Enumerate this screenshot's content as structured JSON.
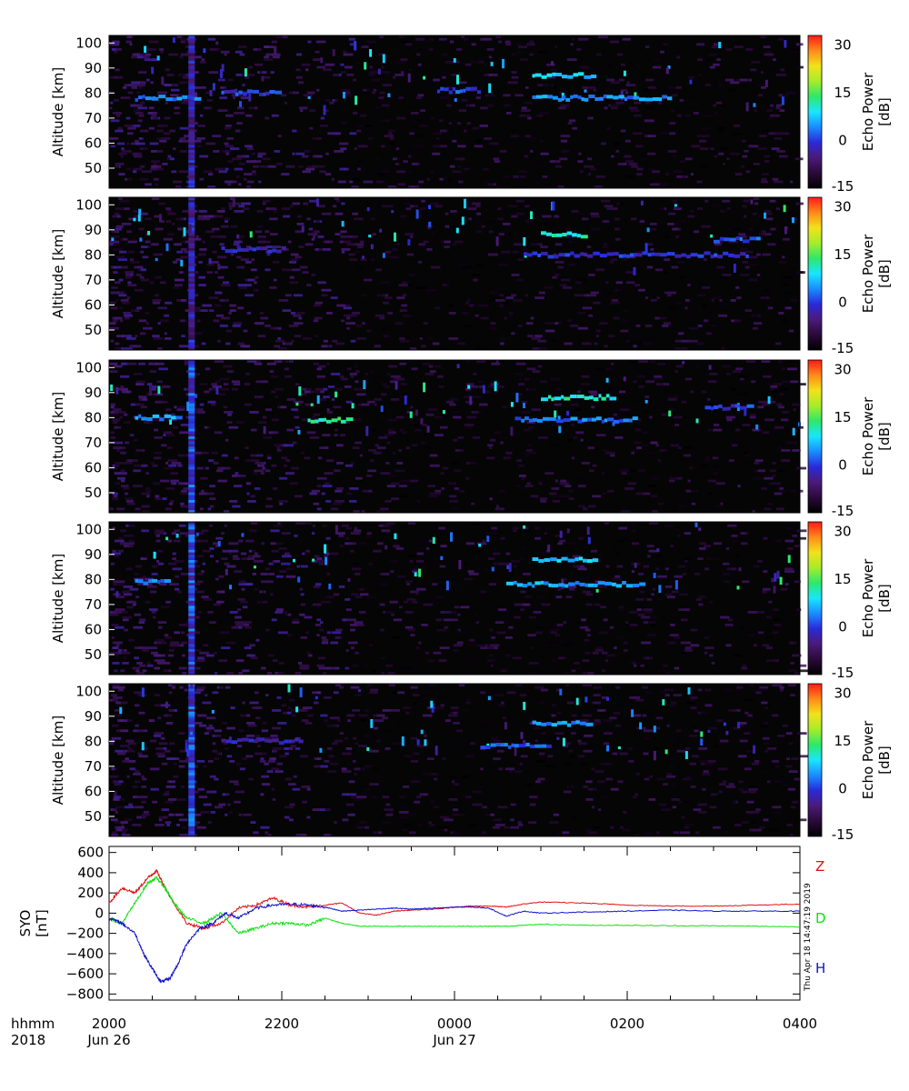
{
  "colors": {
    "background": "#ffffff",
    "plot_bg": "#050505",
    "colormap": [
      "#000000",
      "#2a0a3a",
      "#4b1a7a",
      "#2a2ad8",
      "#1a8cff",
      "#19e6ff",
      "#2ee86a",
      "#a6ec2a",
      "#f2e21a",
      "#ff8a1a",
      "#ff1a1a"
    ],
    "Z": "#e01010",
    "D": "#10e010",
    "H": "#1010d0"
  },
  "chart_data": [
    {
      "type": "heatmap",
      "panel": 1,
      "ylabel": "Altitude [km]",
      "yticks": [
        50,
        60,
        70,
        80,
        90,
        100
      ],
      "ylim": [
        42,
        103
      ],
      "xlim": [
        0,
        8
      ],
      "colorbar": {
        "label": "Echo Power",
        "unit": "[dB]",
        "ticks": [
          -15,
          0,
          15,
          30
        ],
        "range": [
          -15,
          33
        ]
      },
      "echo_layers": [
        {
          "x": [
            0.3,
            1.0
          ],
          "alt": 78,
          "value": 3
        },
        {
          "x": [
            1.3,
            2.0
          ],
          "alt": 80,
          "value": 0
        },
        {
          "x": [
            4.9,
            5.6
          ],
          "alt": 87,
          "value": 8
        },
        {
          "x": [
            4.9,
            6.5
          ],
          "alt": 78,
          "value": 4
        },
        {
          "x": [
            3.8,
            4.3
          ],
          "alt": 81,
          "value": 1
        }
      ]
    },
    {
      "type": "heatmap",
      "panel": 2,
      "ylabel": "Altitude [km]",
      "yticks": [
        50,
        60,
        70,
        80,
        90,
        100
      ],
      "ylim": [
        42,
        103
      ],
      "xlim": [
        0,
        8
      ],
      "colorbar": {
        "label": "Echo Power",
        "unit": "[dB]",
        "ticks": [
          -15,
          0,
          15,
          30
        ],
        "range": [
          -15,
          33
        ]
      },
      "echo_layers": [
        {
          "x": [
            1.3,
            2.0
          ],
          "alt": 82,
          "value": -2
        },
        {
          "x": [
            5.0,
            5.5
          ],
          "alt": 88,
          "value": 10
        },
        {
          "x": [
            4.8,
            7.4
          ],
          "alt": 80,
          "value": -1
        },
        {
          "x": [
            7.0,
            7.5
          ],
          "alt": 86,
          "value": 2
        }
      ]
    },
    {
      "type": "heatmap",
      "panel": 3,
      "ylabel": "Altitude [km]",
      "yticks": [
        50,
        60,
        70,
        80,
        90,
        100
      ],
      "ylim": [
        42,
        103
      ],
      "xlim": [
        0,
        8
      ],
      "colorbar": {
        "label": "Echo Power",
        "unit": "[dB]",
        "ticks": [
          -15,
          0,
          15,
          30
        ],
        "range": [
          -15,
          33
        ]
      },
      "echo_layers": [
        {
          "x": [
            0.3,
            0.8
          ],
          "alt": 80,
          "value": 5
        },
        {
          "x": [
            2.3,
            2.8
          ],
          "alt": 79,
          "value": 12
        },
        {
          "x": [
            5.0,
            5.8
          ],
          "alt": 88,
          "value": 11
        },
        {
          "x": [
            4.7,
            6.1
          ],
          "alt": 79,
          "value": 3
        },
        {
          "x": [
            6.9,
            7.4
          ],
          "alt": 84,
          "value": 0
        }
      ]
    },
    {
      "type": "heatmap",
      "panel": 4,
      "ylabel": "Altitude [km]",
      "yticks": [
        50,
        60,
        70,
        80,
        90,
        100
      ],
      "ylim": [
        42,
        103
      ],
      "xlim": [
        0,
        8
      ],
      "colorbar": {
        "label": "Echo Power",
        "unit": "[dB]",
        "ticks": [
          -15,
          0,
          15,
          30
        ],
        "range": [
          -15,
          33
        ]
      },
      "echo_layers": [
        {
          "x": [
            0.3,
            0.7
          ],
          "alt": 79,
          "value": 4
        },
        {
          "x": [
            4.9,
            5.6
          ],
          "alt": 88,
          "value": 7
        },
        {
          "x": [
            4.6,
            6.2
          ],
          "alt": 78,
          "value": 6
        }
      ]
    },
    {
      "type": "heatmap",
      "panel": 5,
      "ylabel": "Altitude [km]",
      "yticks": [
        50,
        60,
        70,
        80,
        90,
        100
      ],
      "ylim": [
        42,
        103
      ],
      "xlim": [
        0,
        8
      ],
      "colorbar": {
        "label": "Echo Power",
        "unit": "[dB]",
        "ticks": [
          -15,
          0,
          15,
          30
        ],
        "range": [
          -15,
          33
        ]
      },
      "echo_layers": [
        {
          "x": [
            1.3,
            2.2
          ],
          "alt": 80,
          "value": -3
        },
        {
          "x": [
            4.9,
            5.6
          ],
          "alt": 87,
          "value": 4
        },
        {
          "x": [
            4.3,
            5.1
          ],
          "alt": 78,
          "value": 2
        }
      ]
    },
    {
      "type": "line",
      "panel": 6,
      "ylabel": "SYO",
      "yunit": "[nT]",
      "yticks": [
        -800,
        -600,
        -400,
        -200,
        0,
        200,
        400,
        600
      ],
      "ylim": [
        -860,
        660
      ],
      "xlim": [
        0,
        8
      ],
      "series": [
        {
          "name": "Z",
          "color": "#e01010",
          "x": [
            0,
            0.15,
            0.3,
            0.45,
            0.55,
            0.65,
            0.75,
            0.9,
            1.1,
            1.3,
            1.5,
            1.7,
            1.9,
            2.1,
            2.3,
            2.5,
            2.7,
            2.9,
            3.1,
            3.3,
            3.5,
            3.8,
            4.0,
            4.2,
            4.4,
            4.6,
            4.8,
            5.0,
            5.5,
            6.0,
            6.5,
            7.0,
            7.5,
            8.0
          ],
          "y": [
            100,
            250,
            200,
            350,
            420,
            250,
            100,
            -100,
            -150,
            -100,
            50,
            80,
            150,
            80,
            60,
            80,
            100,
            0,
            -20,
            20,
            30,
            40,
            60,
            70,
            70,
            60,
            90,
            110,
            100,
            80,
            70,
            70,
            80,
            90
          ]
        },
        {
          "name": "D",
          "color": "#10e010",
          "x": [
            0,
            0.15,
            0.3,
            0.45,
            0.55,
            0.65,
            0.75,
            0.9,
            1.1,
            1.3,
            1.5,
            1.7,
            1.9,
            2.1,
            2.3,
            2.5,
            2.7,
            2.9,
            3.1,
            3.3,
            3.5,
            3.8,
            4.0,
            4.2,
            4.4,
            4.6,
            4.8,
            5.0,
            5.5,
            6.0,
            6.5,
            7.0,
            7.5,
            8.0
          ],
          "y": [
            -50,
            -100,
            100,
            300,
            350,
            250,
            100,
            -50,
            -100,
            0,
            -200,
            -150,
            -100,
            -100,
            -120,
            -50,
            -100,
            -130,
            -130,
            -130,
            -130,
            -130,
            -130,
            -130,
            -130,
            -130,
            -120,
            -110,
            -120,
            -120,
            -125,
            -125,
            -130,
            -135
          ]
        },
        {
          "name": "H",
          "color": "#1010d0",
          "x": [
            0,
            0.15,
            0.3,
            0.4,
            0.5,
            0.6,
            0.7,
            0.8,
            0.9,
            1.05,
            1.2,
            1.35,
            1.5,
            1.7,
            1.9,
            2.1,
            2.3,
            2.5,
            2.7,
            2.9,
            3.1,
            3.3,
            3.5,
            3.8,
            4.0,
            4.2,
            4.4,
            4.6,
            4.8,
            5.0,
            5.5,
            6.0,
            6.5,
            7.0,
            7.5,
            8.0
          ],
          "y": [
            -50,
            -100,
            -200,
            -400,
            -550,
            -680,
            -650,
            -500,
            -300,
            -150,
            -100,
            0,
            -50,
            50,
            80,
            90,
            80,
            60,
            20,
            30,
            40,
            50,
            40,
            50,
            60,
            60,
            50,
            -30,
            20,
            0,
            10,
            20,
            30,
            20,
            20,
            20
          ]
        }
      ]
    }
  ],
  "legend": {
    "Z": "Z",
    "D": "D",
    "H": "H"
  },
  "timestamp": "Thu Apr 18 14:47:19 2019",
  "xaxis": {
    "row1_label": "hhmm",
    "row2_label": "2018",
    "ticks": [
      {
        "x": 0,
        "label": "2000",
        "date": "Jun 26"
      },
      {
        "x": 2,
        "label": "2200",
        "date": ""
      },
      {
        "x": 4,
        "label": "0000",
        "date": "Jun 27"
      },
      {
        "x": 6,
        "label": "0200",
        "date": ""
      },
      {
        "x": 8,
        "label": "0400",
        "date": ""
      }
    ]
  }
}
